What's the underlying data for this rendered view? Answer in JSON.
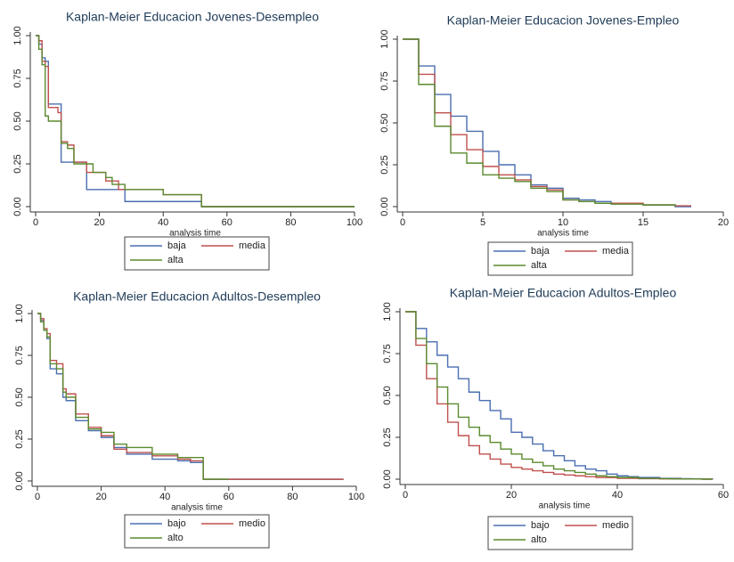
{
  "chart_data": [
    {
      "type": "step",
      "title": "Kaplan-Meier Educacion Jovenes-Desempleo",
      "x_label": "analysis time",
      "xlim": [
        0,
        100
      ],
      "xticks": [
        0,
        20,
        40,
        60,
        80,
        100
      ],
      "ylim": [
        0,
        1
      ],
      "yticks": [
        {
          "value": 0,
          "label": "0.00"
        },
        {
          "value": 0.25,
          "label": "0.25"
        },
        {
          "value": 0.5,
          "label": "0.50"
        },
        {
          "value": 0.75,
          "label": "0.75"
        },
        {
          "value": 1,
          "label": "1.00"
        }
      ],
      "grid": false,
      "series": [
        {
          "name": "baja",
          "color": "#4a6fb0",
          "x": [
            0,
            1,
            2,
            3,
            4,
            7,
            8,
            12,
            16,
            24,
            28,
            52,
            100
          ],
          "values": [
            1,
            0.95,
            0.87,
            0.85,
            0.6,
            0.6,
            0.26,
            0.26,
            0.1,
            0.1,
            0.03,
            0,
            0
          ]
        },
        {
          "name": "media",
          "color": "#c0504d",
          "x": [
            0,
            1,
            2,
            3,
            4,
            7,
            8,
            10,
            12,
            16,
            22,
            26,
            40,
            52,
            100
          ],
          "values": [
            1,
            0.97,
            0.85,
            0.82,
            0.58,
            0.55,
            0.38,
            0.36,
            0.26,
            0.2,
            0.15,
            0.1,
            0.07,
            0,
            0
          ]
        },
        {
          "name": "alta",
          "color": "#5b8a2f",
          "x": [
            0,
            1,
            2,
            3,
            4,
            6,
            8,
            10,
            12,
            18,
            22,
            24,
            28,
            40,
            52,
            100
          ],
          "values": [
            1,
            0.92,
            0.83,
            0.53,
            0.5,
            0.5,
            0.37,
            0.34,
            0.25,
            0.2,
            0.17,
            0.13,
            0.1,
            0.07,
            0,
            0
          ]
        }
      ]
    },
    {
      "type": "step",
      "title": "Kaplan-Meier Educacion Jovenes-Empleo",
      "x_label": "analysis time",
      "xlim": [
        0,
        20
      ],
      "xticks": [
        0,
        5,
        10,
        15,
        20
      ],
      "ylim": [
        0,
        1
      ],
      "yticks": [
        {
          "value": 0,
          "label": "0.00"
        },
        {
          "value": 0.25,
          "label": "0.25"
        },
        {
          "value": 0.5,
          "label": "0.50"
        },
        {
          "value": 0.75,
          "label": "0.75"
        },
        {
          "value": 1,
          "label": "1.00"
        }
      ],
      "grid": false,
      "series": [
        {
          "name": "baja",
          "color": "#4a6fb0",
          "x": [
            0,
            1,
            2,
            3,
            4,
            5,
            6,
            7,
            8,
            9,
            10,
            11,
            12,
            13,
            15,
            17,
            18
          ],
          "values": [
            1,
            0.84,
            0.67,
            0.54,
            0.45,
            0.33,
            0.25,
            0.19,
            0.13,
            0.11,
            0.05,
            0.04,
            0.03,
            0.02,
            0.01,
            0,
            0
          ]
        },
        {
          "name": "media",
          "color": "#c0504d",
          "x": [
            0,
            1,
            2,
            3,
            4,
            5,
            6,
            7,
            8,
            9,
            10,
            11,
            12,
            13,
            15,
            17,
            18
          ],
          "values": [
            1,
            0.79,
            0.56,
            0.43,
            0.34,
            0.24,
            0.19,
            0.16,
            0.12,
            0.1,
            0.04,
            0.03,
            0.02,
            0.02,
            0.01,
            0.005,
            0.005
          ]
        },
        {
          "name": "alta",
          "color": "#5b8a2f",
          "x": [
            0,
            1,
            2,
            3,
            4,
            5,
            6,
            7,
            8,
            9,
            10,
            11,
            12,
            13,
            15,
            17
          ],
          "values": [
            1,
            0.73,
            0.48,
            0.32,
            0.26,
            0.19,
            0.17,
            0.15,
            0.11,
            0.09,
            0.04,
            0.03,
            0.02,
            0.015,
            0.01,
            0
          ]
        }
      ]
    },
    {
      "type": "step",
      "title": "Kaplan-Meier Educacion Adultos-Desempleo",
      "x_label": "analysis time",
      "xlim": [
        0,
        100
      ],
      "xticks": [
        0,
        20,
        40,
        60,
        80,
        100
      ],
      "ylim": [
        0,
        1
      ],
      "yticks": [
        {
          "value": 0,
          "label": "0.00"
        },
        {
          "value": 0.25,
          "label": "0.25"
        },
        {
          "value": 0.5,
          "label": "0.50"
        },
        {
          "value": 0.75,
          "label": "0.75"
        },
        {
          "value": 1,
          "label": "1.00"
        }
      ],
      "grid": false,
      "series": [
        {
          "name": "bajo",
          "color": "#4a6fb0",
          "x": [
            0,
            1,
            2,
            3,
            4,
            6,
            8,
            9,
            12,
            16,
            20,
            24,
            28,
            36,
            44,
            48,
            52,
            96
          ],
          "values": [
            1,
            0.96,
            0.9,
            0.85,
            0.67,
            0.64,
            0.5,
            0.48,
            0.36,
            0.3,
            0.26,
            0.2,
            0.16,
            0.13,
            0.12,
            0.11,
            0.01,
            0.01
          ]
        },
        {
          "name": "medio",
          "color": "#c0504d",
          "x": [
            0,
            1,
            2,
            3,
            4,
            6,
            8,
            9,
            12,
            16,
            20,
            24,
            28,
            36,
            44,
            48,
            52,
            96
          ],
          "values": [
            1,
            0.97,
            0.91,
            0.88,
            0.72,
            0.7,
            0.55,
            0.52,
            0.4,
            0.32,
            0.27,
            0.19,
            0.17,
            0.15,
            0.13,
            0.12,
            0.01,
            0.01
          ]
        },
        {
          "name": "alto",
          "color": "#5b8a2f",
          "x": [
            0,
            1,
            2,
            3,
            4,
            6,
            8,
            9,
            12,
            16,
            20,
            24,
            28,
            36,
            44,
            48,
            52,
            60
          ],
          "values": [
            1,
            0.95,
            0.9,
            0.86,
            0.7,
            0.67,
            0.53,
            0.5,
            0.38,
            0.31,
            0.29,
            0.22,
            0.2,
            0.16,
            0.14,
            0.14,
            0.01,
            0.01
          ]
        }
      ]
    },
    {
      "type": "step",
      "title": "Kaplan-Meier Educacion Adultos-Empleo",
      "x_label": "analysis time",
      "xlim": [
        0,
        60
      ],
      "xticks": [
        0,
        20,
        40,
        60
      ],
      "ylim": [
        0,
        1
      ],
      "yticks": [
        {
          "value": 0,
          "label": "0.00"
        },
        {
          "value": 0.25,
          "label": "0.25"
        },
        {
          "value": 0.5,
          "label": "0.50"
        },
        {
          "value": 0.75,
          "label": "0.75"
        },
        {
          "value": 1,
          "label": "1.00"
        }
      ],
      "grid": false,
      "series": [
        {
          "name": "bajo",
          "color": "#4a6fb0",
          "x": [
            0,
            2,
            4,
            6,
            8,
            10,
            12,
            14,
            16,
            18,
            20,
            22,
            24,
            26,
            28,
            30,
            32,
            34,
            36,
            38,
            40,
            42,
            44,
            46,
            48,
            50,
            52,
            54,
            56,
            58
          ],
          "values": [
            1,
            0.9,
            0.82,
            0.74,
            0.67,
            0.6,
            0.52,
            0.47,
            0.41,
            0.36,
            0.28,
            0.25,
            0.21,
            0.17,
            0.14,
            0.11,
            0.08,
            0.06,
            0.05,
            0.03,
            0.02,
            0.015,
            0.01,
            0.01,
            0.005,
            0.005,
            0.003,
            0.002,
            0.001,
            0
          ]
        },
        {
          "name": "medio",
          "color": "#c0504d",
          "x": [
            0,
            2,
            4,
            6,
            8,
            10,
            12,
            14,
            16,
            18,
            20,
            22,
            24,
            26,
            28,
            30,
            32,
            34,
            36,
            38,
            40,
            42,
            44,
            46,
            48,
            50,
            52,
            54,
            56,
            58
          ],
          "values": [
            1,
            0.8,
            0.6,
            0.45,
            0.34,
            0.26,
            0.2,
            0.15,
            0.12,
            0.09,
            0.07,
            0.06,
            0.05,
            0.04,
            0.03,
            0.025,
            0.02,
            0.015,
            0.01,
            0.01,
            0.005,
            0.005,
            0.003,
            0.003,
            0.002,
            0.002,
            0.001,
            0.001,
            0,
            0
          ]
        },
        {
          "name": "alto",
          "color": "#5b8a2f",
          "x": [
            0,
            2,
            4,
            6,
            8,
            10,
            12,
            14,
            16,
            18,
            20,
            22,
            24,
            26,
            28,
            30,
            32,
            34,
            36,
            38,
            40,
            42,
            44,
            46,
            48,
            50,
            52,
            54,
            56,
            58
          ],
          "values": [
            1,
            0.84,
            0.69,
            0.55,
            0.45,
            0.37,
            0.31,
            0.26,
            0.22,
            0.18,
            0.15,
            0.12,
            0.1,
            0.08,
            0.06,
            0.05,
            0.04,
            0.03,
            0.02,
            0.015,
            0.01,
            0.01,
            0.005,
            0.005,
            0.003,
            0.002,
            0.001,
            0.001,
            0,
            0
          ]
        }
      ]
    }
  ]
}
